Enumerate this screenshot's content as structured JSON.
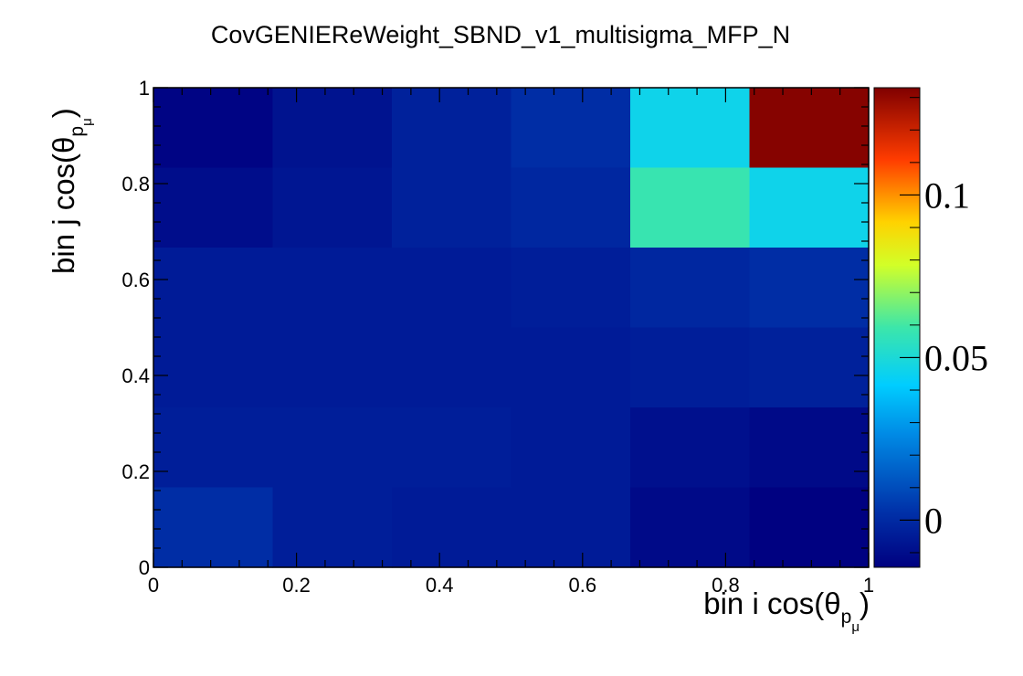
{
  "chart_data": {
    "type": "heatmap",
    "title": "CovGENIEReWeight_SBND_v1_multisigma_MFP_N",
    "xlabel": "bin i cos(θ",
    "ylabel": "bin j cos(θ",
    "label_sub": "p",
    "label_subsub": "μ",
    "x_ticks": [
      "0",
      "0.2",
      "0.4",
      "0.6",
      "0.8",
      "1"
    ],
    "y_ticks": [
      "0",
      "0.2",
      "0.4",
      "0.6",
      "0.8",
      "1"
    ],
    "xlim": [
      0,
      1
    ],
    "ylim": [
      0,
      1
    ],
    "nx": 6,
    "ny": 6,
    "z_rows_top_to_bottom": [
      [
        -0.013,
        -0.008,
        -0.003,
        0.001,
        0.046,
        0.132
      ],
      [
        -0.01,
        -0.007,
        -0.003,
        -0.001,
        0.058,
        0.046
      ],
      [
        -0.005,
        -0.005,
        -0.005,
        -0.004,
        -0.001,
        0.001
      ],
      [
        -0.005,
        -0.005,
        -0.005,
        -0.005,
        -0.004,
        -0.003
      ],
      [
        -0.004,
        -0.004,
        -0.004,
        -0.005,
        -0.009,
        -0.011
      ],
      [
        0.001,
        -0.004,
        -0.005,
        -0.005,
        -0.011,
        -0.014
      ]
    ],
    "zlim": [
      -0.0145,
      0.133
    ],
    "colorbar_ticks": [
      {
        "label": "0",
        "value": 0
      },
      {
        "label": "0.05",
        "value": 0.05
      },
      {
        "label": "0.1",
        "value": 0.1
      }
    ],
    "grid": false
  }
}
